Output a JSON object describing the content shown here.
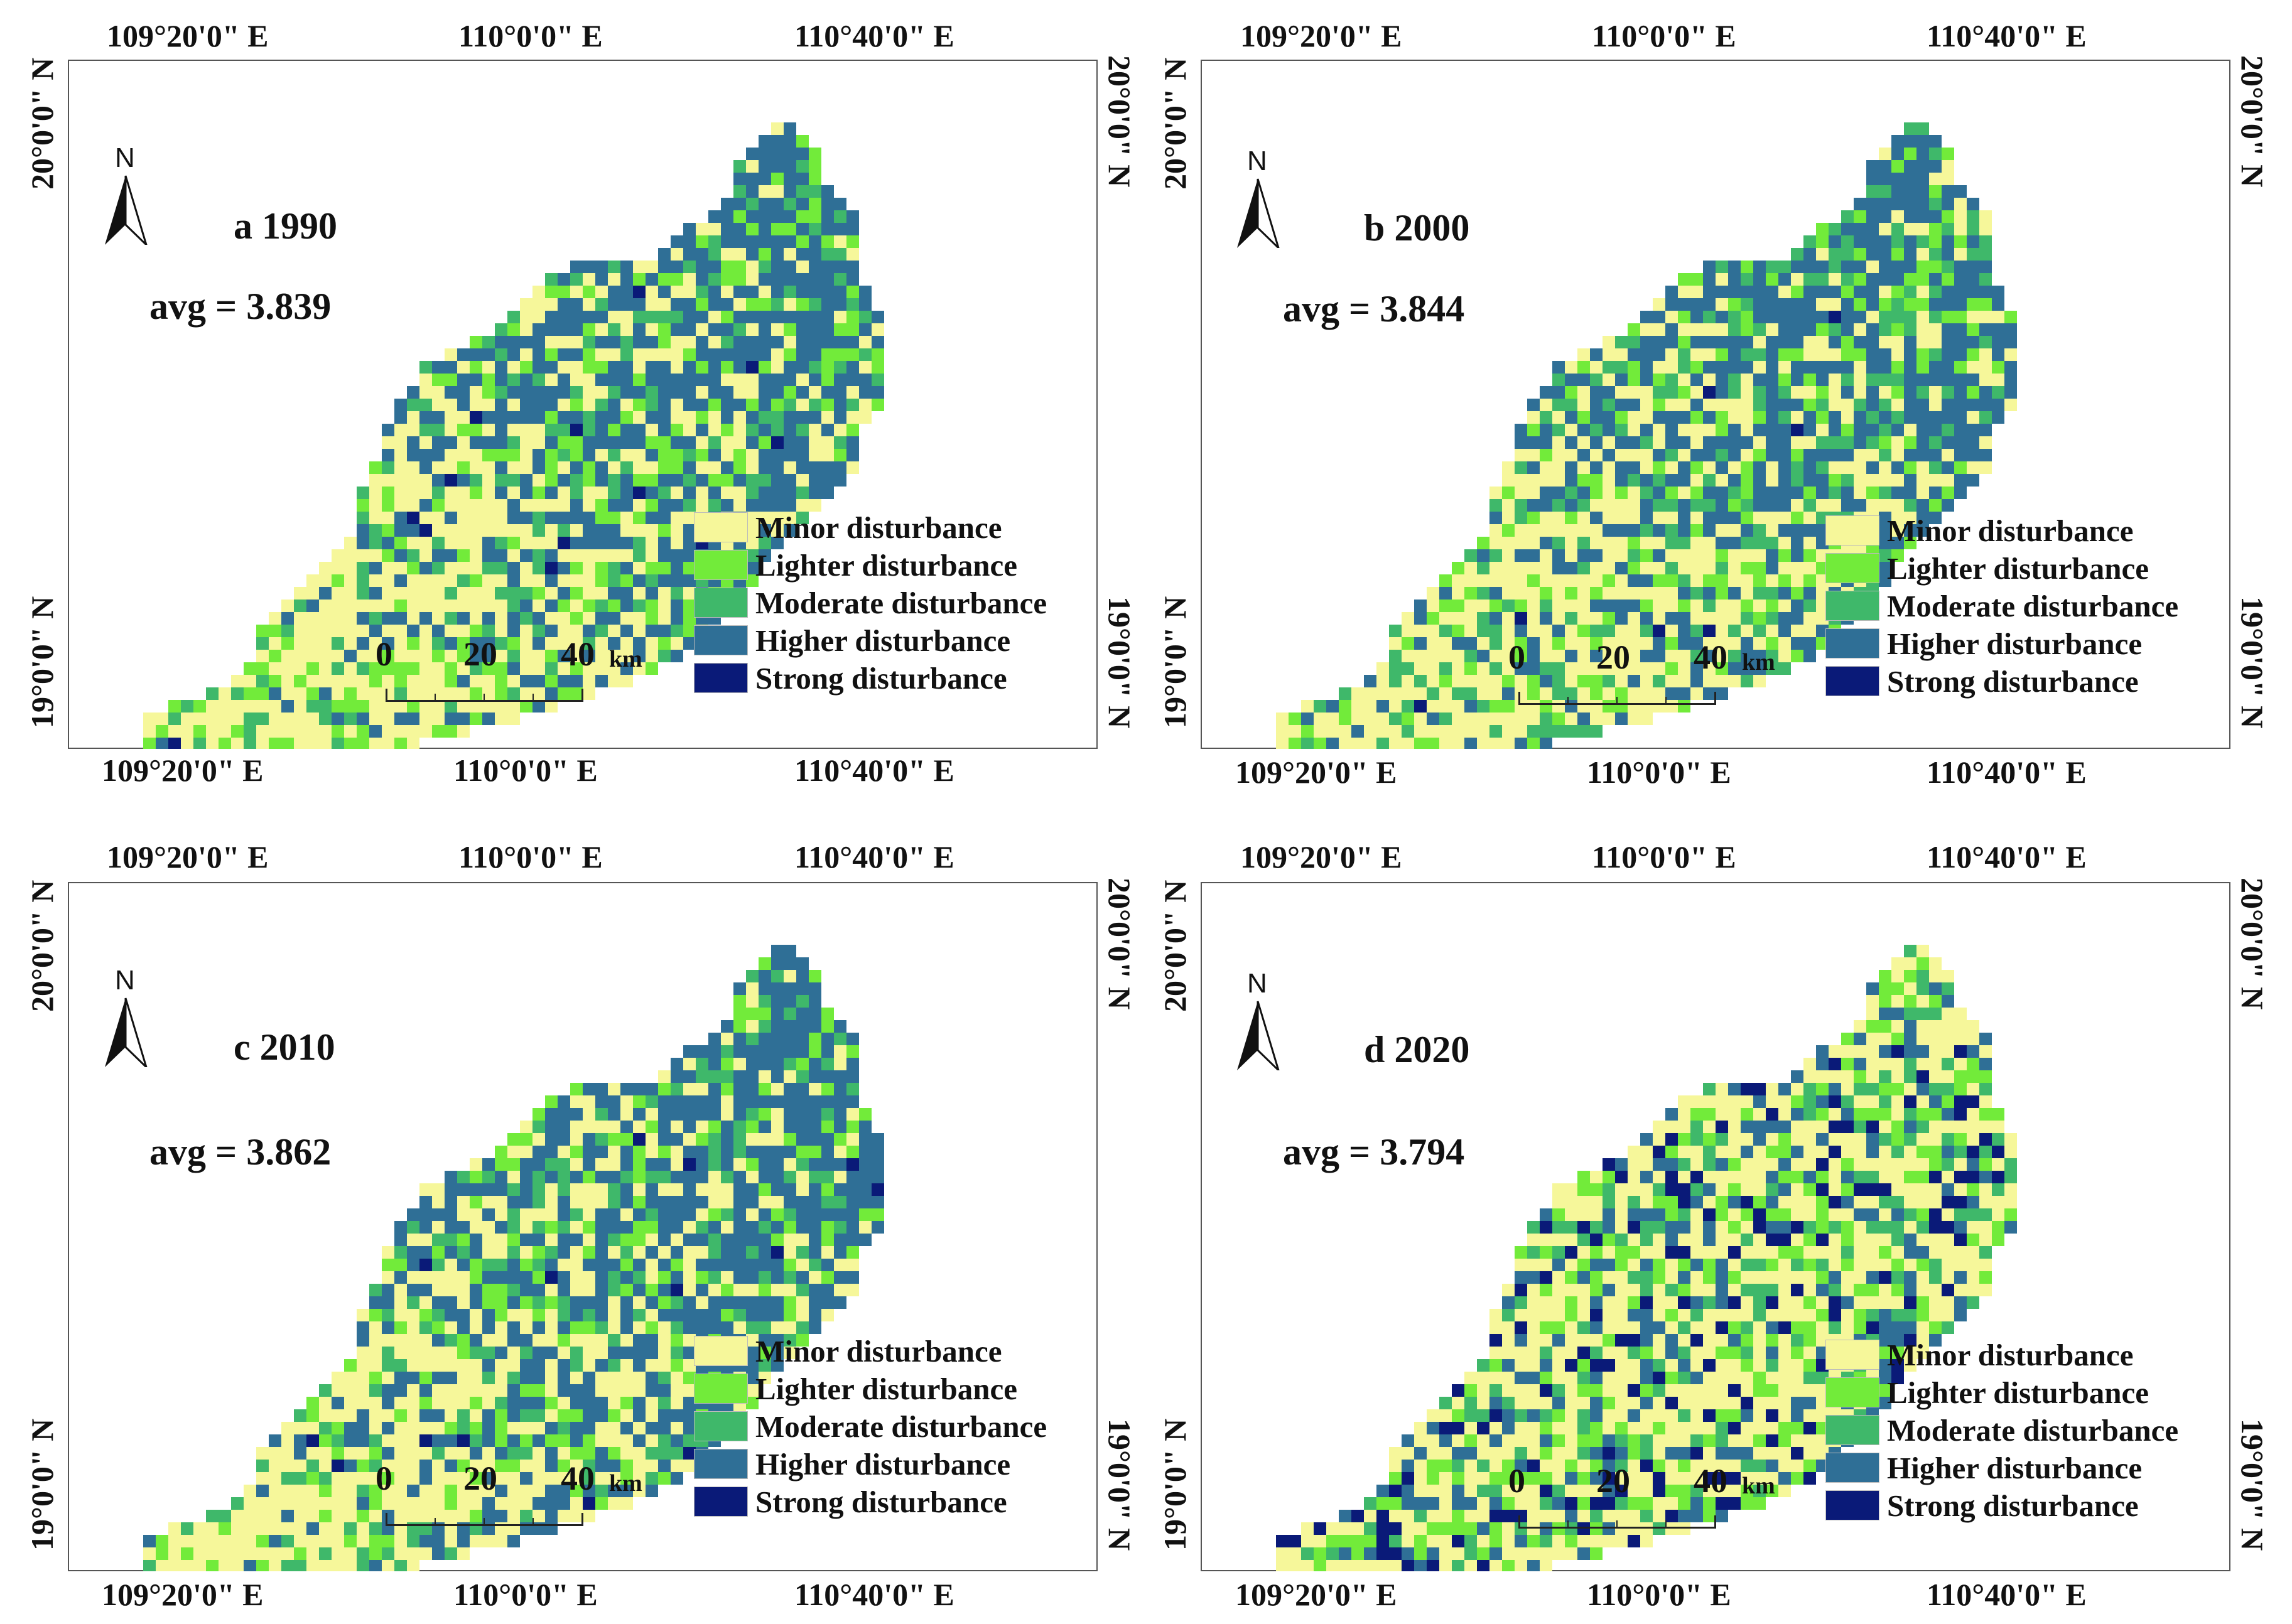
{
  "colors": {
    "minor": "#f6f79a",
    "lighter": "#72eb3a",
    "moderate": "#3fb86a",
    "higher": "#2f6f96",
    "strong": "#0a1a78"
  },
  "legend": [
    {
      "key": "minor",
      "label": "Minor disturbance"
    },
    {
      "key": "lighter",
      "label": "Lighter disturbance"
    },
    {
      "key": "moderate",
      "label": "Moderate disturbance"
    },
    {
      "key": "higher",
      "label": "Higher disturbance"
    },
    {
      "key": "strong",
      "label": "Strong disturbance"
    }
  ],
  "scalebar": {
    "labels": [
      "0",
      "20",
      "40"
    ],
    "unit": "km"
  },
  "north_label": "N",
  "coords": {
    "lon": [
      "109°20'0\" E",
      "110°0'0\" E",
      "110°40'0\" E"
    ],
    "lat": [
      "20°0'0\" N",
      "19°0'0\" N"
    ]
  },
  "panels": [
    {
      "id": "a",
      "title": "a 1990",
      "avg": "avg = 3.839",
      "mix": [
        0.42,
        0.14,
        0.12,
        0.31,
        0.01
      ]
    },
    {
      "id": "b",
      "title": "b 2000",
      "avg": "avg = 3.844",
      "mix": [
        0.4,
        0.14,
        0.16,
        0.29,
        0.01
      ]
    },
    {
      "id": "c",
      "title": "c 2010",
      "avg": "avg = 3.862",
      "mix": [
        0.41,
        0.13,
        0.12,
        0.33,
        0.01
      ]
    },
    {
      "id": "d",
      "title": "d 2020",
      "avg": "avg = 3.794",
      "mix": [
        0.45,
        0.17,
        0.13,
        0.14,
        0.11
      ]
    }
  ]
}
